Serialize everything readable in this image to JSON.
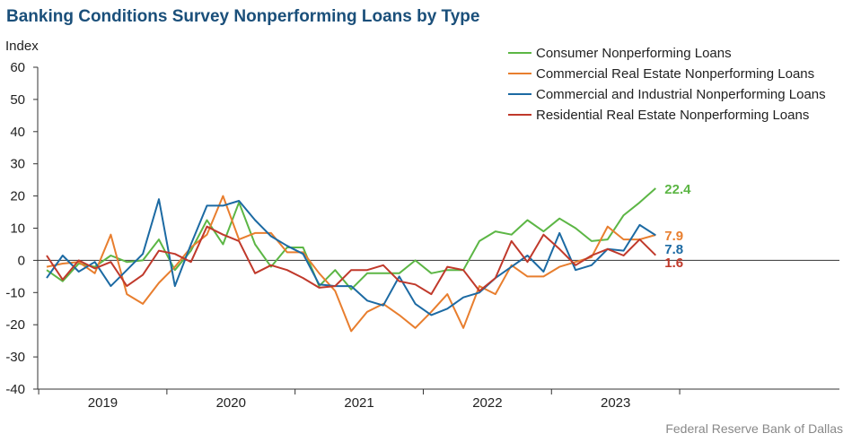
{
  "title": "Banking Conditions Survey Nonperforming Loans by Type",
  "source": "Federal Reserve Bank of Dallas",
  "chart_data": {
    "type": "line",
    "ylabel": "Index",
    "ylim": [
      -40,
      60
    ],
    "yticks": [
      -40,
      -30,
      -20,
      -10,
      0,
      10,
      20,
      30,
      40,
      50,
      60
    ],
    "year_labels": [
      "2019",
      "2020",
      "2021",
      "2022",
      "2023"
    ],
    "legend_position": "top-right",
    "series": [
      {
        "name": "Consumer Nonperforming Loans",
        "color": "#5cb645",
        "end_label": "22.4",
        "values": [
          -3,
          -6.5,
          -1,
          -2,
          1.5,
          -0.5,
          0,
          6.5,
          -3,
          3,
          12.5,
          5,
          18,
          5,
          -2,
          4,
          4,
          -8,
          -3,
          -9,
          -4,
          -4,
          -4,
          0,
          -4,
          -3,
          -3,
          6,
          9,
          8,
          12.5,
          9,
          13,
          10,
          6,
          6.5,
          14,
          18,
          22.4
        ]
      },
      {
        "name": "Commercial Real Estate Nonperforming Loans",
        "color": "#e87e2e",
        "end_label": "7.9",
        "values": [
          -2,
          -1,
          -0.5,
          -4,
          8,
          -10.5,
          -13.5,
          -7,
          -2,
          4,
          8,
          20,
          6.5,
          8.5,
          8.5,
          2.5,
          2.5,
          -4,
          -9.5,
          -22,
          -16,
          -13.5,
          -17,
          -21,
          -16,
          -10.5,
          -21,
          -8,
          -10.5,
          -1.5,
          -5,
          -5,
          -2,
          -0.5,
          1,
          10.5,
          6.5,
          6.5,
          7.9
        ]
      },
      {
        "name": "Commercial and Industrial Nonperforming Loans",
        "color": "#1c6aa3",
        "end_label": "7.8",
        "values": [
          -5.5,
          1.5,
          -3.5,
          -0.5,
          -8,
          -3,
          2,
          19,
          -8,
          5,
          17,
          17,
          18.5,
          12.5,
          7.5,
          4.5,
          2,
          -7.5,
          -8,
          -8,
          -12.5,
          -14,
          -5,
          -13.5,
          -17,
          -15,
          -11.5,
          -10,
          -5.5,
          -2,
          1.5,
          -3.5,
          8.5,
          -3,
          -1.5,
          3.5,
          3,
          11,
          7.8
        ]
      },
      {
        "name": "Residential Real Estate Nonperforming Loans",
        "color": "#c0392b",
        "end_label": "1.6",
        "values": [
          1.5,
          -6,
          0,
          -2.5,
          -0.5,
          -8,
          -4.5,
          3,
          2,
          -0.5,
          10.5,
          8,
          6,
          -4,
          -1.5,
          -3,
          -5.5,
          -8.5,
          -8,
          -3,
          -3,
          -1.5,
          -6.5,
          -7.5,
          -10.5,
          -2,
          -3,
          -9.5,
          -5.5,
          6,
          -0.5,
          8,
          3.5,
          -1.5,
          1.5,
          3.5,
          1.5,
          6.5,
          1.6
        ]
      }
    ]
  }
}
